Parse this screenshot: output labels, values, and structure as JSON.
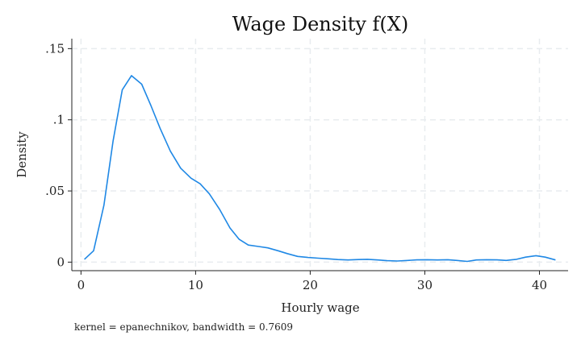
{
  "chart_data": {
    "type": "line",
    "title": "Wage Density f(X)",
    "xlabel": "Hourly wage",
    "ylabel": "Density",
    "note": "kernel = epanechnikov, bandwidth = 0.7609",
    "xlim": [
      -0.8,
      42.5
    ],
    "ylim": [
      -0.006,
      0.157
    ],
    "xticks": [
      {
        "value": 0,
        "label": "0"
      },
      {
        "value": 10,
        "label": "10"
      },
      {
        "value": 20,
        "label": "20"
      },
      {
        "value": 30,
        "label": "30"
      },
      {
        "value": 40,
        "label": "40"
      }
    ],
    "yticks": [
      {
        "value": 0,
        "label": "0"
      },
      {
        "value": 0.05,
        "label": ".05"
      },
      {
        "value": 0.1,
        "label": ".1"
      },
      {
        "value": 0.15,
        "label": ".15"
      }
    ],
    "grid": true,
    "series": [
      {
        "color": "#1f88e5",
        "x": [
          0.3,
          1.1,
          2.0,
          2.8,
          3.6,
          4.4,
          5.3,
          6.1,
          6.9,
          7.8,
          8.7,
          9.6,
          10.4,
          11.2,
          12.1,
          13.0,
          13.8,
          14.6,
          15.5,
          16.3,
          17.2,
          18.0,
          18.9,
          19.8,
          20.7,
          21.6,
          22.4,
          23.3,
          24.2,
          25.0,
          25.9,
          26.7,
          27.6,
          28.5,
          29.3,
          30.2,
          31.1,
          32.0,
          32.8,
          33.7,
          34.5,
          35.4,
          36.3,
          37.1,
          38.0,
          38.8,
          39.7,
          40.5,
          41.4
        ],
        "y": [
          0.002,
          0.008,
          0.04,
          0.085,
          0.121,
          0.131,
          0.125,
          0.11,
          0.094,
          0.078,
          0.066,
          0.059,
          0.055,
          0.048,
          0.037,
          0.024,
          0.016,
          0.012,
          0.011,
          0.01,
          0.008,
          0.006,
          0.004,
          0.0033,
          0.0028,
          0.0023,
          0.0018,
          0.0015,
          0.0018,
          0.002,
          0.0015,
          0.001,
          0.0008,
          0.0012,
          0.0016,
          0.0017,
          0.0015,
          0.0017,
          0.0012,
          0.0005,
          0.0015,
          0.0017,
          0.0016,
          0.0012,
          0.002,
          0.0035,
          0.0045,
          0.0035,
          0.0015
        ]
      }
    ]
  }
}
